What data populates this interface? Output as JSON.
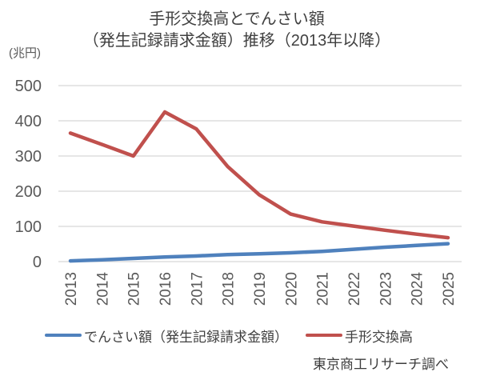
{
  "title": {
    "line1": "手形交換高とでんさい額",
    "line2": "（発生記録請求金額）推移（2013年以降）"
  },
  "y_axis_unit": "(兆円)",
  "source": "東京商工リサーチ調べ",
  "legend": {
    "items": [
      {
        "label": "でんさい額（発生記録請求金額）",
        "color": "#4f81bd"
      },
      {
        "label": "手形交換高",
        "color": "#c0504d"
      }
    ]
  },
  "chart_data": {
    "type": "line",
    "title": "手形交換高とでんさい額（発生記録請求金額）推移（2013年以降）",
    "ylabel": "(兆円)",
    "xlabel": "",
    "categories": [
      "2013",
      "2014",
      "2015",
      "2016",
      "2017",
      "2018",
      "2019",
      "2020",
      "2021",
      "2022",
      "2023",
      "2024",
      "2025"
    ],
    "series": [
      {
        "name": "でんさい額（発生記録請求金額）",
        "color": "#4f81bd",
        "values": [
          2,
          5,
          9,
          13,
          16,
          20,
          22,
          25,
          29,
          35,
          41,
          46,
          51
        ]
      },
      {
        "name": "手形交換高",
        "color": "#c0504d",
        "values": [
          365,
          333,
          300,
          425,
          377,
          270,
          190,
          135,
          113,
          101,
          89,
          78,
          68
        ]
      }
    ],
    "ylim": [
      0,
      500
    ],
    "y_ticks": [
      0,
      100,
      200,
      300,
      400,
      500
    ],
    "grid": true,
    "legend_position": "bottom",
    "x_tick_rotation": -90,
    "gridline_color": "#d6d6d6",
    "tick_label_color": "#595959"
  }
}
